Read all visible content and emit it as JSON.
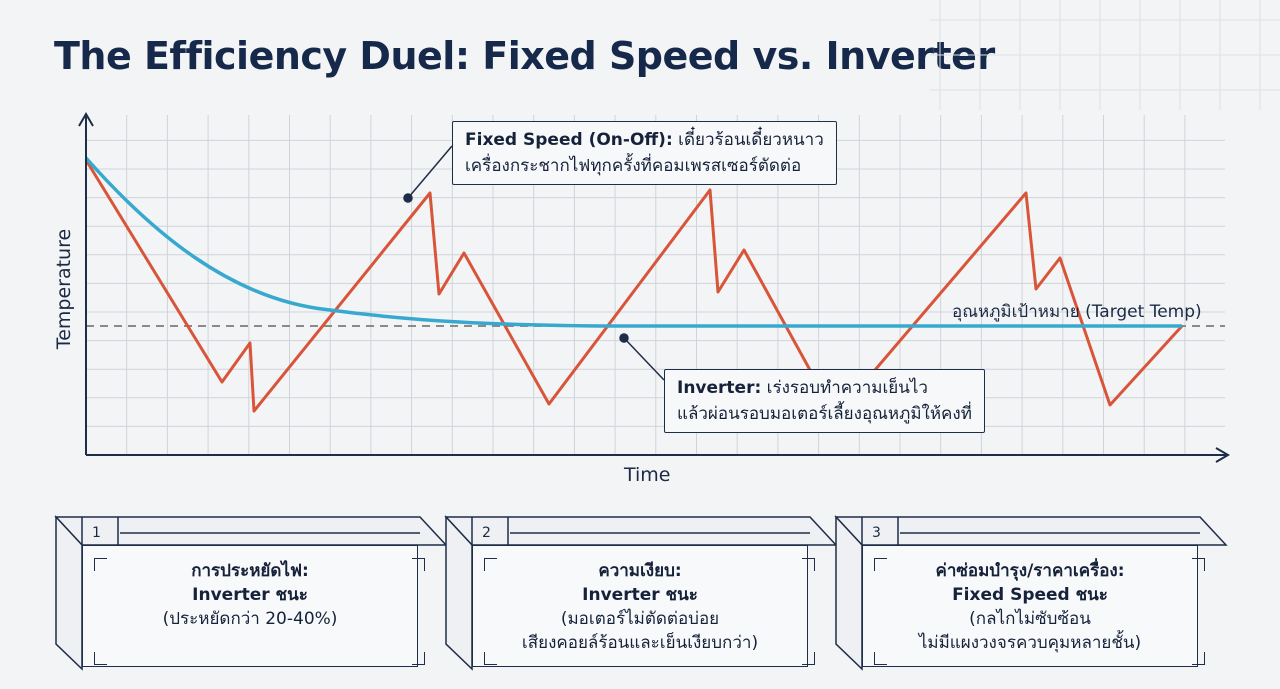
{
  "title": "The Efficiency Duel: Fixed Speed vs. Inverter",
  "chart_data": {
    "type": "line",
    "xlabel": "Time",
    "ylabel": "Temperature",
    "target_line_label": "อุณหภูมิเป้าหมาย (Target Temp)",
    "series": [
      {
        "name": "Fixed Speed (On-Off)",
        "color": "#d8553a"
      },
      {
        "name": "Inverter",
        "color": "#37a9cf"
      }
    ],
    "target_color": "#8a8a8a"
  },
  "callouts": {
    "fixed": {
      "label": "Fixed Speed (On-Off):",
      "line1": "เดี๋ยวร้อนเดี๋ยวหนาว",
      "line2": "เครื่องกระชากไฟทุกครั้งที่คอมเพรสเซอร์ตัดต่อ"
    },
    "inverter": {
      "label": "Inverter:",
      "line1": "เร่งรอบทำความเย็นไว",
      "line2": "แล้วผ่อนรอบมอเตอร์เลี้ยงอุณหภูมิให้คงที่"
    }
  },
  "cards": [
    {
      "num": "1",
      "head1": "การประหยัดไฟ:",
      "head2": "Inverter ชนะ",
      "line1": "(ประหยัดกว่า 20-40%)",
      "line2": ""
    },
    {
      "num": "2",
      "head1": "ความเงียบ:",
      "head2": "Inverter ชนะ",
      "line1": "(มอเตอร์ไม่ตัดต่อบ่อย",
      "line2": "เสียงคอยล์ร้อนและเย็นเงียบกว่า)"
    },
    {
      "num": "3",
      "head1": "ค่าซ่อมบำรุง/ราคาเครื่อง:",
      "head2": "Fixed Speed ชนะ",
      "line1": "(กลไกไม่ซับซ้อน",
      "line2": "ไม่มีแผงวงจรควบคุมหลายชั้น)"
    }
  ]
}
